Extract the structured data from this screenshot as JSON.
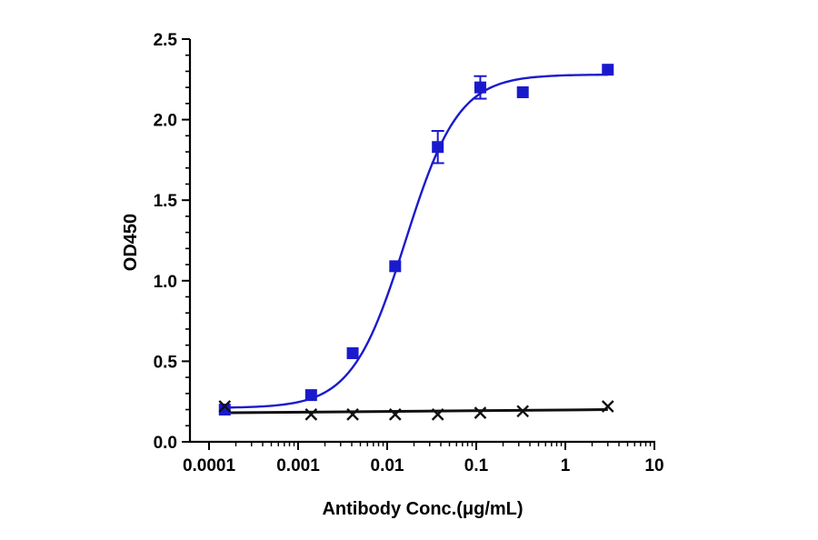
{
  "chart_data": {
    "type": "scatter",
    "title": "",
    "xlabel": "Antibody Conc.(μg/mL)",
    "ylabel": "OD450",
    "x_scale": "log",
    "xlim": [
      0.0001,
      10
    ],
    "ylim": [
      0,
      2.5
    ],
    "x_ticks": [
      0.0001,
      0.001,
      0.01,
      0.1,
      1,
      10
    ],
    "x_tick_labels": [
      "0.0001",
      "0.001",
      "0.01",
      "0.1",
      "1",
      "10"
    ],
    "y_ticks": [
      0,
      0.5,
      1.0,
      1.5,
      2.0,
      2.5
    ],
    "y_tick_labels": [
      "0.0",
      "0.5",
      "1.0",
      "1.5",
      "2.0",
      "2.5"
    ],
    "grid": false,
    "legend": "none",
    "series": [
      {
        "marker": "square",
        "color": "#1a1acd",
        "points": [
          {
            "x": 0.00015,
            "y": 0.2,
            "err": 0.02
          },
          {
            "x": 0.0014,
            "y": 0.29,
            "err": 0.01
          },
          {
            "x": 0.0041,
            "y": 0.55,
            "err": 0.01
          },
          {
            "x": 0.0123,
            "y": 1.09,
            "err": 0.01
          },
          {
            "x": 0.037,
            "y": 1.83,
            "err": 0.1
          },
          {
            "x": 0.111,
            "y": 2.2,
            "err": 0.07
          },
          {
            "x": 0.333,
            "y": 2.17,
            "err": 0.03
          },
          {
            "x": 3.0,
            "y": 2.31,
            "err": 0.01
          }
        ],
        "fit": {
          "model": "4PL",
          "bottom": 0.21,
          "top": 2.28,
          "ec50": 0.016,
          "hill": 1.45
        }
      },
      {
        "marker": "x",
        "color": "#111111",
        "points": [
          {
            "x": 0.00015,
            "y": 0.22
          },
          {
            "x": 0.0014,
            "y": 0.17
          },
          {
            "x": 0.0041,
            "y": 0.17
          },
          {
            "x": 0.0123,
            "y": 0.17
          },
          {
            "x": 0.037,
            "y": 0.17
          },
          {
            "x": 0.111,
            "y": 0.18
          },
          {
            "x": 0.333,
            "y": 0.19
          },
          {
            "x": 3.0,
            "y": 0.22
          }
        ],
        "fit": {
          "model": "linear",
          "y_start": 0.18,
          "y_end": 0.2
        }
      }
    ]
  }
}
